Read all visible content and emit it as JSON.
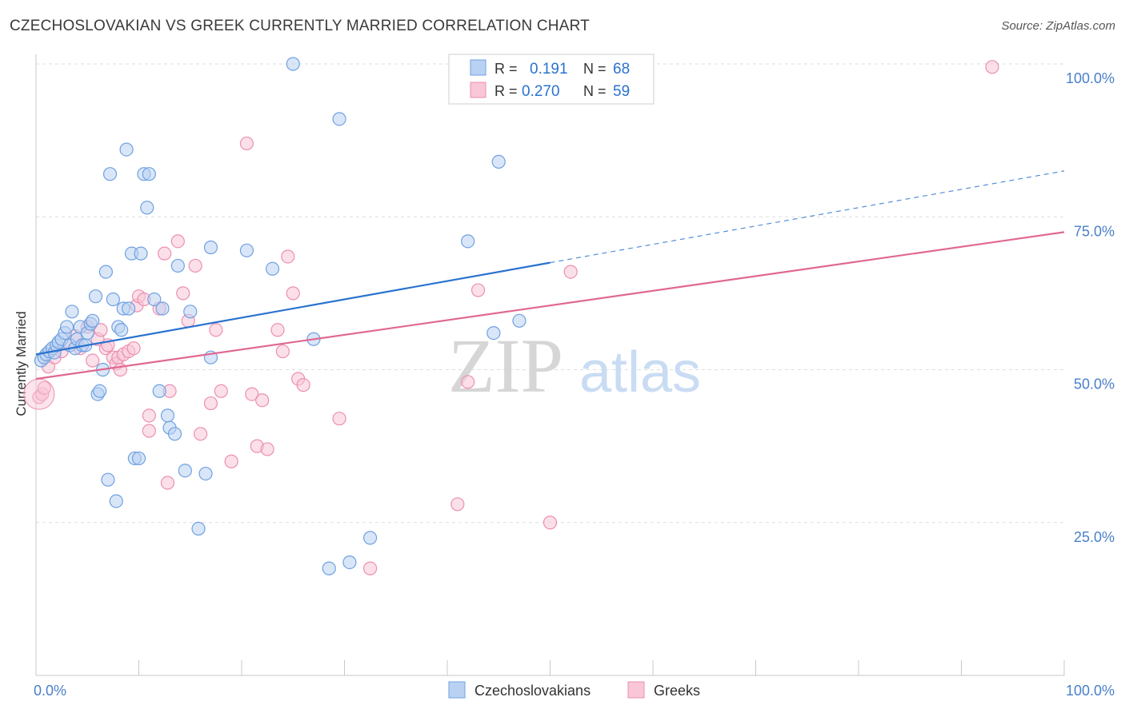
{
  "title": "CZECHOSLOVAKIAN VS GREEK CURRENTLY MARRIED CORRELATION CHART",
  "source": "Source: ZipAtlas.com",
  "watermark": {
    "zip": "ZIP",
    "atlas": "atlas"
  },
  "colors": {
    "blue": "#6fa1e0",
    "blue_fill": "#b9d2f3",
    "blue_line": "#2a72cf",
    "pink": "#ec8fb0",
    "pink_fill": "#f8c6d7",
    "pink_line": "#e06890",
    "axis_label": "#4a7fc9",
    "grid": "#dddddd"
  },
  "legend_top": {
    "rows": [
      {
        "r_label": "R =",
        "r_value": "0.191",
        "n_label": "N =",
        "n_value": "68",
        "series": "blue"
      },
      {
        "r_label": "R =",
        "r_value": "0.270",
        "n_label": "N =",
        "n_value": "59",
        "series": "pink"
      }
    ]
  },
  "chart_data": {
    "type": "scatter",
    "ylabel": "Currently Married",
    "x_ticks": [
      "0.0%",
      "100.0%"
    ],
    "y_ticks": [
      "25.0%",
      "50.0%",
      "75.0%",
      "100.0%"
    ],
    "xlim": [
      0,
      100
    ],
    "ylim": [
      0,
      102
    ],
    "grid": true,
    "legend_position": "bottom",
    "series": [
      {
        "name": "Czechoslovakians",
        "color": "blue",
        "trend": {
          "x0": 0,
          "y0": 52.5,
          "x1": 50,
          "y1": 67.5,
          "dash_to_x": 100,
          "dash_to_y": 82.5
        },
        "points": [
          [
            0.5,
            51.5
          ],
          [
            0.8,
            52
          ],
          [
            1,
            52.5
          ],
          [
            1.3,
            53
          ],
          [
            1.6,
            53.5
          ],
          [
            1.8,
            52.8
          ],
          [
            2,
            54
          ],
          [
            2.2,
            54.5
          ],
          [
            2.5,
            55
          ],
          [
            2.8,
            56
          ],
          [
            3,
            57
          ],
          [
            3.3,
            54
          ],
          [
            3.5,
            59.5
          ],
          [
            3.8,
            53.5
          ],
          [
            4,
            55
          ],
          [
            4.3,
            57
          ],
          [
            4.5,
            54
          ],
          [
            4.8,
            54
          ],
          [
            5,
            56
          ],
          [
            5.3,
            57.5
          ],
          [
            5.5,
            58
          ],
          [
            5.8,
            62
          ],
          [
            6,
            46
          ],
          [
            6.2,
            46.5
          ],
          [
            6.5,
            50
          ],
          [
            6.8,
            66
          ],
          [
            7,
            32
          ],
          [
            7.2,
            82
          ],
          [
            7.5,
            61.5
          ],
          [
            7.8,
            28.5
          ],
          [
            8,
            57
          ],
          [
            8.3,
            56.5
          ],
          [
            8.5,
            60
          ],
          [
            8.8,
            86
          ],
          [
            9,
            60
          ],
          [
            9.3,
            69
          ],
          [
            9.6,
            35.5
          ],
          [
            10,
            35.5
          ],
          [
            10.2,
            69
          ],
          [
            10.5,
            82
          ],
          [
            10.8,
            76.5
          ],
          [
            11,
            82
          ],
          [
            11.5,
            61.5
          ],
          [
            12,
            46.5
          ],
          [
            12.3,
            60
          ],
          [
            12.8,
            42.5
          ],
          [
            13,
            40.5
          ],
          [
            13.5,
            39.5
          ],
          [
            13.8,
            67
          ],
          [
            14.5,
            33.5
          ],
          [
            15,
            59.5
          ],
          [
            15.8,
            24
          ],
          [
            16.5,
            33
          ],
          [
            17,
            52
          ],
          [
            17,
            70
          ],
          [
            20.5,
            69.5
          ],
          [
            23,
            66.5
          ],
          [
            25,
            100
          ],
          [
            27,
            55
          ],
          [
            28.5,
            17.5
          ],
          [
            29.5,
            91
          ],
          [
            30.5,
            18.5
          ],
          [
            32.5,
            22.5
          ],
          [
            42,
            71
          ],
          [
            45,
            84
          ],
          [
            44.5,
            56
          ],
          [
            47,
            58
          ],
          [
            50.5,
            100
          ]
        ]
      },
      {
        "name": "Greeks",
        "color": "pink",
        "trend": {
          "x0": 0,
          "y0": 48.5,
          "x1": 100,
          "y1": 72.5
        },
        "points": [
          [
            0.3,
            45.5
          ],
          [
            0.6,
            46
          ],
          [
            0.8,
            47
          ],
          [
            1.2,
            50.5
          ],
          [
            1.8,
            52
          ],
          [
            2.5,
            53
          ],
          [
            3.3,
            54
          ],
          [
            3.8,
            55.5
          ],
          [
            4.3,
            53.5
          ],
          [
            5,
            57
          ],
          [
            5.5,
            51.5
          ],
          [
            6,
            55
          ],
          [
            6.3,
            56.5
          ],
          [
            6.8,
            53.5
          ],
          [
            7,
            54
          ],
          [
            7.5,
            52
          ],
          [
            7.8,
            51
          ],
          [
            8,
            52
          ],
          [
            8.2,
            50
          ],
          [
            8.5,
            52.5
          ],
          [
            9,
            53
          ],
          [
            9.5,
            53.5
          ],
          [
            9.8,
            60.5
          ],
          [
            10,
            62
          ],
          [
            10.5,
            61.5
          ],
          [
            11,
            42.5
          ],
          [
            11,
            40
          ],
          [
            12,
            60
          ],
          [
            12.5,
            69
          ],
          [
            12.8,
            31.5
          ],
          [
            13,
            46.5
          ],
          [
            13.8,
            71
          ],
          [
            14.3,
            62.5
          ],
          [
            14.8,
            58
          ],
          [
            15.5,
            67
          ],
          [
            16,
            39.5
          ],
          [
            17,
            44.5
          ],
          [
            17.5,
            56.5
          ],
          [
            18,
            46.5
          ],
          [
            19,
            35
          ],
          [
            20.5,
            87
          ],
          [
            21,
            46
          ],
          [
            21.5,
            37.5
          ],
          [
            22,
            45
          ],
          [
            22.5,
            37
          ],
          [
            23.5,
            56.5
          ],
          [
            24,
            53
          ],
          [
            24.5,
            68.5
          ],
          [
            25,
            62.5
          ],
          [
            25.5,
            48.5
          ],
          [
            26,
            47.5
          ],
          [
            29.5,
            42
          ],
          [
            32.5,
            17.5
          ],
          [
            41,
            28
          ],
          [
            42,
            48
          ],
          [
            43,
            63
          ],
          [
            50,
            25
          ],
          [
            52,
            66
          ],
          [
            93,
            99.5
          ]
        ]
      }
    ]
  }
}
